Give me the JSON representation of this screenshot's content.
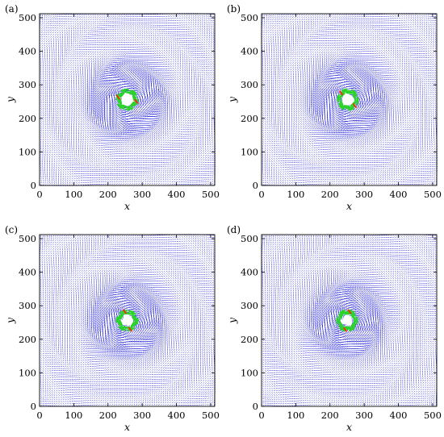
{
  "chart_data": [
    {
      "panel_label": "(a)",
      "type": "vector-field",
      "xlabel": "x",
      "ylabel": "y",
      "xlim": [
        0,
        512
      ],
      "ylim": [
        0,
        512
      ],
      "xticks": [
        0,
        100,
        200,
        300,
        400,
        500
      ],
      "yticks": [
        0,
        100,
        200,
        300,
        400,
        500
      ],
      "vortex_center": [
        256,
        256
      ],
      "rotation_deg": 0,
      "colors": {
        "field": "#1f1fd6",
        "core": "#2ad42a",
        "hot": "#ff2a00"
      }
    },
    {
      "panel_label": "(b)",
      "type": "vector-field",
      "xlabel": "x",
      "ylabel": "y",
      "xlim": [
        0,
        512
      ],
      "ylim": [
        0,
        512
      ],
      "xticks": [
        0,
        100,
        200,
        300,
        400,
        500
      ],
      "yticks": [
        0,
        100,
        200,
        300,
        400,
        500
      ],
      "vortex_center": [
        252,
        256
      ],
      "rotation_deg": 30,
      "colors": {
        "field": "#1f1fd6",
        "core": "#2ad42a",
        "hot": "#ff2a00"
      }
    },
    {
      "panel_label": "(c)",
      "type": "vector-field",
      "xlabel": "x",
      "ylabel": "y",
      "xlim": [
        0,
        512
      ],
      "ylim": [
        0,
        512
      ],
      "xticks": [
        0,
        100,
        200,
        300,
        400,
        500
      ],
      "yticks": [
        0,
        100,
        200,
        300,
        400,
        500
      ],
      "vortex_center": [
        256,
        256
      ],
      "rotation_deg": 60,
      "colors": {
        "field": "#1f1fd6",
        "core": "#2ad42a",
        "hot": "#ff2a00"
      }
    },
    {
      "panel_label": "(d)",
      "type": "vector-field",
      "xlabel": "x",
      "ylabel": "y",
      "xlim": [
        0,
        512
      ],
      "ylim": [
        0,
        512
      ],
      "xticks": [
        0,
        100,
        200,
        300,
        400,
        500
      ],
      "yticks": [
        0,
        100,
        200,
        300,
        400,
        500
      ],
      "vortex_center": [
        250,
        256
      ],
      "rotation_deg": 90,
      "colors": {
        "field": "#1f1fd6",
        "core": "#2ad42a",
        "hot": "#ff2a00"
      }
    }
  ]
}
